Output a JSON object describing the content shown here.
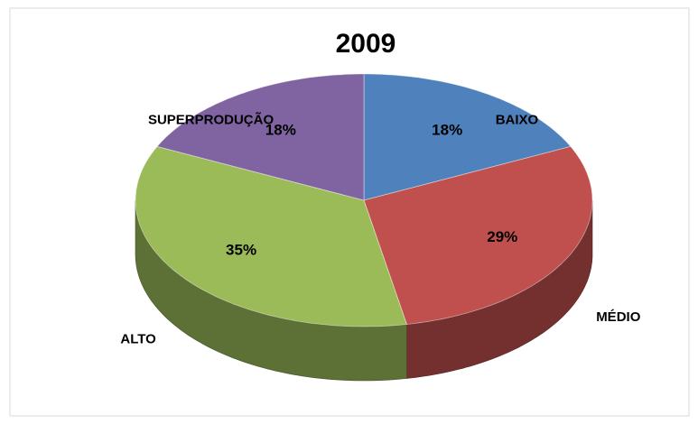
{
  "chart_data": {
    "type": "pie",
    "title": "2009",
    "categories": [
      "BAIXO",
      "MÉDIO",
      "ALTO",
      "SUPERPRODUÇÃO"
    ],
    "values": [
      18,
      29,
      35,
      18
    ],
    "value_labels": [
      "18%",
      "29%",
      "35%",
      "18%"
    ],
    "colors": [
      "#4f81bd",
      "#c0504d",
      "#9bbb59",
      "#8064a2"
    ]
  }
}
